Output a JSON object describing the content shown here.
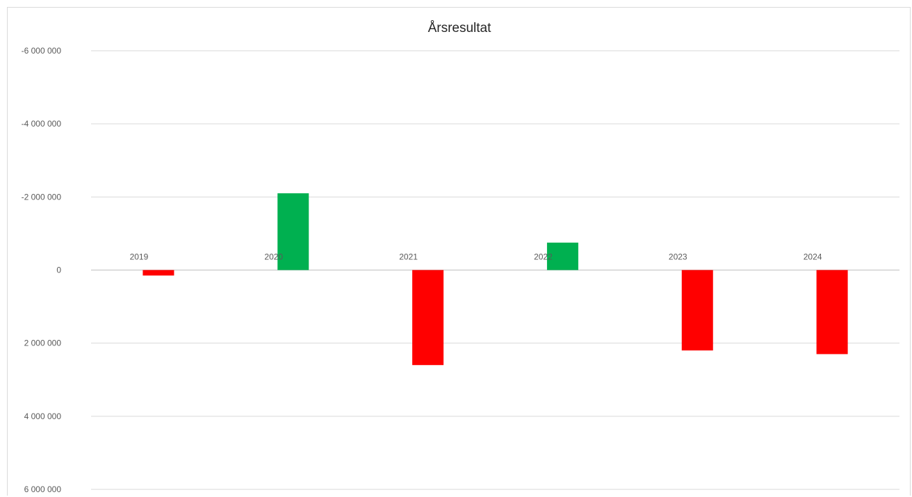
{
  "chart_data": {
    "type": "bar",
    "title": "Årsresultat",
    "xlabel": "",
    "ylabel": "",
    "categories": [
      "2019",
      "2020",
      "2021",
      "2022",
      "2023",
      "2024"
    ],
    "values": [
      150000,
      -2100000,
      2600000,
      -750000,
      2200000,
      2300000
    ],
    "y_axis_reversed": true,
    "ylim": [
      -6000000,
      6000000
    ],
    "yticks": [
      -6000000,
      -4000000,
      -2000000,
      0,
      2000000,
      4000000,
      6000000
    ],
    "ytick_labels": [
      "-6 000 000",
      "-4 000 000",
      "-2 000 000",
      "0",
      "2 000 000",
      "4 000 000",
      "6 000 000"
    ],
    "grid": true,
    "legend": "none",
    "colors": {
      "positive": "#ff0000",
      "negative": "#00b050"
    }
  }
}
